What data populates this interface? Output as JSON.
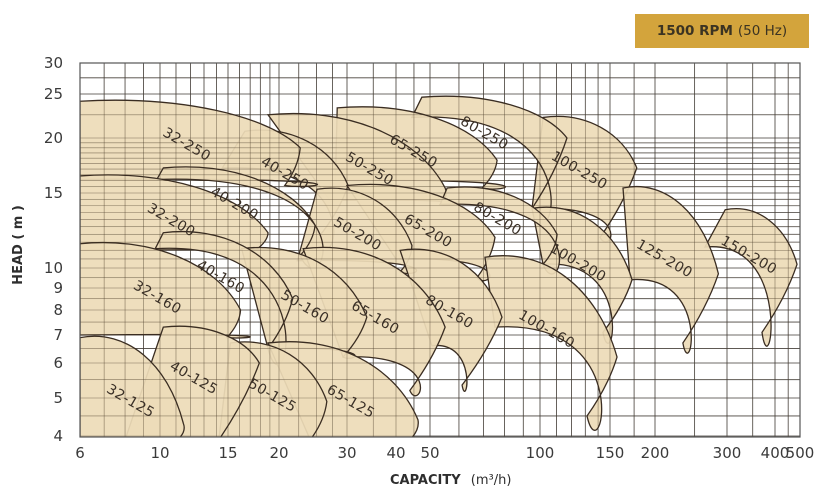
{
  "badge": {
    "speed": "1500 RPM",
    "frequency": "(50 Hz)"
  },
  "colors": {
    "badge": "#d3a43c",
    "region_fill": "#eddcb8",
    "region_stroke": "#3a2d22",
    "grid": "#5a5a5a"
  },
  "chart_data": {
    "type": "area",
    "title": "",
    "xlabel": "CAPACITY",
    "xlabel_unit": "(m³/h)",
    "ylabel": "HEAD ( m )",
    "x_scale": "log",
    "y_scale": "log",
    "xlim": [
      6,
      500
    ],
    "ylim": [
      4,
      30
    ],
    "grid": true,
    "x_ticks": [
      "6",
      "10",
      "15",
      "20",
      "30",
      "40",
      "50",
      "100",
      "150",
      "200",
      "300",
      "400",
      "500"
    ],
    "y_ticks": [
      "4",
      "5",
      "6",
      "7",
      "8",
      "9",
      "10",
      "15",
      "20",
      "25",
      "30"
    ],
    "regions_note_order": "",
    "regions": [
      {
        "model": "100-250",
        "corners": [
          [
            101.8,
            22.2
          ],
          [
            178,
            17.1
          ],
          [
            141.6,
            11.8
          ],
          [
            95.1,
            13.8
          ]
        ]
      },
      {
        "model": "80-250",
        "corners": [
          [
            47.4,
            24.6
          ],
          [
            116.9,
            20.0
          ],
          [
            95.1,
            13.8
          ],
          [
            44.4,
            22.2
          ]
        ]
      },
      {
        "model": "65-250",
        "corners": [
          [
            28.3,
            23.3
          ],
          [
            76.3,
            17.8
          ],
          [
            69.4,
            15.4
          ],
          [
            28,
            16
          ]
        ]
      },
      {
        "model": "50-250",
        "corners": [
          [
            18.8,
            22.5
          ],
          [
            55,
            15.4
          ],
          [
            53.3,
            14.1
          ],
          [
            27.1,
            14.4
          ]
        ]
      },
      {
        "model": "40-250",
        "corners": [
          [
            16.5,
            20.7
          ],
          [
            30.2,
            15.6
          ],
          [
            25.3,
            11.8
          ],
          [
            14.5,
            17.1
          ]
        ]
      },
      {
        "model": "32-250",
        "corners": [
          [
            6,
            24.1
          ],
          [
            22.7,
            19.0
          ],
          [
            20.7,
            15.6
          ],
          [
            6,
            16.1
          ]
        ]
      },
      {
        "model": "150-200",
        "corners": [
          [
            296.9,
            13.7
          ],
          [
            487,
            10.2
          ],
          [
            370,
            7.1
          ],
          [
            265,
            11.2
          ]
        ]
      },
      {
        "model": "125-200",
        "corners": [
          [
            163,
            15.4
          ],
          [
            285.8,
            9.7
          ],
          [
            234,
            6.7
          ],
          [
            170.5,
            9.4
          ]
        ]
      },
      {
        "model": "100-200",
        "corners": [
          [
            95.1,
            13.8
          ],
          [
            172.7,
            9.4
          ],
          [
            144,
            7.1
          ],
          [
            101.8,
            10.2
          ]
        ]
      },
      {
        "model": "80-200",
        "corners": [
          [
            55.7,
            15.4
          ],
          [
            110.4,
            12.0
          ],
          [
            101.8,
            10.2
          ],
          [
            53.3,
            14.1
          ]
        ]
      },
      {
        "model": "65-200",
        "corners": [
          [
            30,
            15.6
          ],
          [
            75.3,
            11.8
          ],
          [
            67.2,
            9.5
          ],
          [
            40,
            10.5
          ]
        ]
      },
      {
        "model": "50-200",
        "corners": [
          [
            25.1,
            15.3
          ],
          [
            44.4,
            11.3
          ],
          [
            41.1,
            9.8
          ],
          [
            22.3,
            10.4
          ]
        ]
      },
      {
        "model": "40-200",
        "corners": [
          [
            10.2,
            17.1
          ],
          [
            24.8,
            12.6
          ],
          [
            22.7,
            10.7
          ],
          [
            9.8,
            16.1
          ]
        ]
      },
      {
        "model": "32-200",
        "corners": [
          [
            6,
            16.4
          ],
          [
            18.8,
            12.1
          ],
          [
            17.5,
            11.0
          ],
          [
            6,
            11.0
          ]
        ]
      },
      {
        "model": "100-160",
        "corners": [
          [
            70.7,
            10.6
          ],
          [
            156.9,
            6.2
          ],
          [
            131.3,
            4.5
          ],
          [
            75.3,
            7.3
          ]
        ]
      },
      {
        "model": "80-160",
        "corners": [
          [
            41.1,
            11.0
          ],
          [
            78.7,
            7.7
          ],
          [
            61.2,
            5.35
          ],
          [
            50.6,
            6.6
          ]
        ]
      },
      {
        "model": "65-160",
        "corners": [
          [
            23.1,
            11.1
          ],
          [
            55,
            7.3
          ],
          [
            43.8,
            5.2
          ],
          [
            29.3,
            6.2
          ]
        ]
      },
      {
        "model": "50-160",
        "corners": [
          [
            16.2,
            11.1
          ],
          [
            33.7,
            7.7
          ],
          [
            29.3,
            6.2
          ],
          [
            18.8,
            6.5
          ]
        ]
      },
      {
        "model": "40-160",
        "corners": [
          [
            10.2,
            12.1
          ],
          [
            21.7,
            8.5
          ],
          [
            18.8,
            6.5
          ],
          [
            9.7,
            11.1
          ]
        ]
      },
      {
        "model": "32-160",
        "corners": [
          [
            6,
            11.4
          ],
          [
            16.1,
            8.0
          ],
          [
            14.9,
            6.9
          ],
          [
            6,
            7.0
          ]
        ]
      },
      {
        "model": "65-125",
        "corners": [
          [
            18.8,
            6.7
          ],
          [
            46.2,
            4.4
          ],
          [
            43.8,
            3.9
          ],
          [
            24.1,
            3.9
          ]
        ]
      },
      {
        "model": "50-125",
        "corners": [
          [
            15.2,
            6.7
          ],
          [
            26.6,
            4.9
          ],
          [
            24.1,
            3.9
          ],
          [
            14.2,
            3.9
          ]
        ]
      },
      {
        "model": "40-125",
        "corners": [
          [
            10.2,
            7.3
          ],
          [
            17.9,
            6.0
          ],
          [
            14.2,
            3.9
          ],
          [
            8.0,
            3.9
          ]
        ]
      },
      {
        "model": "32-125",
        "corners": [
          [
            6,
            6.9
          ],
          [
            11.5,
            4.3
          ],
          [
            11.1,
            3.9
          ],
          [
            6,
            3.9
          ]
        ]
      }
    ]
  }
}
